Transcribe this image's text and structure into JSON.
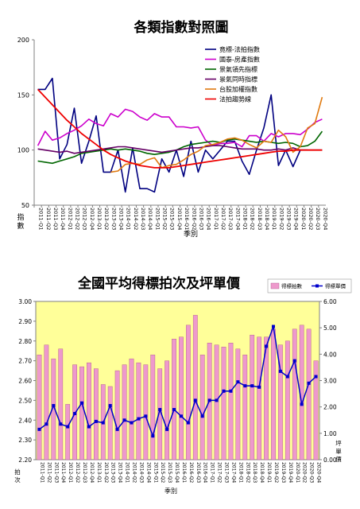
{
  "chart_data": [
    {
      "type": "line",
      "title": "各類指數對照圖",
      "xlabel": "季別",
      "ylabel": "指數",
      "ylim": [
        50,
        200
      ],
      "yticks": [
        50,
        100,
        150,
        200
      ],
      "legend_position": "top-right",
      "x": [
        "2011-Q1",
        "2011-Q2",
        "2011-Q3",
        "2011-Q4",
        "2012-Q1",
        "2012-Q2",
        "2012-Q3",
        "2012-Q4",
        "2013-Q1",
        "2013-Q2",
        "2013-Q3",
        "2013-Q4",
        "2014-Q1",
        "2014-Q2",
        "2014-Q3",
        "2014-Q4",
        "2015-Q1",
        "2015-Q2",
        "2015-Q3",
        "2015-Q4",
        "2016-Q1",
        "2016-Q2",
        "2016-Q3",
        "2016-Q4",
        "2017-Q1",
        "2017-Q2",
        "2017-Q3",
        "2017-Q4",
        "2018-Q1",
        "2018-Q2",
        "2018-Q3",
        "2018-Q4",
        "2019-Q1",
        "2019-Q2",
        "2019-Q3",
        "2019-Q4",
        "2020-Q1",
        "2020-Q2",
        "2020-Q3",
        "2020-Q4"
      ],
      "series": [
        {
          "name": "竟標-法拍指數",
          "color": "#000080",
          "values": [
            155,
            155,
            165,
            92,
            105,
            138,
            88,
            108,
            131,
            80,
            80,
            100,
            62,
            102,
            65,
            65,
            62,
            92,
            80,
            100,
            76,
            108,
            80,
            100,
            92,
            100,
            108,
            108,
            90,
            78,
            100,
            120,
            150,
            86,
            100,
            85,
            100,
            100,
            null,
            null
          ]
        },
        {
          "name": "國泰-房產指數",
          "color": "#cc00cc",
          "values": [
            104,
            117,
            109,
            111,
            115,
            118,
            122,
            128,
            124,
            122,
            133,
            130,
            137,
            135,
            130,
            127,
            133,
            130,
            130,
            121,
            121,
            120,
            121,
            109,
            104,
            106,
            106,
            107,
            103,
            113,
            113,
            108,
            115,
            112,
            115,
            115,
            114,
            119,
            125,
            128
          ]
        },
        {
          "name": "景氣領先指標",
          "color": "#006600",
          "values": [
            90,
            89,
            88,
            90,
            92,
            94,
            97,
            98,
            99,
            100,
            101,
            100,
            101,
            100,
            99,
            97,
            96,
            97,
            98,
            100,
            103,
            105,
            106,
            107,
            108,
            107,
            109,
            110,
            109,
            108,
            107,
            108,
            107,
            106,
            107,
            106,
            103,
            104,
            108,
            117
          ]
        },
        {
          "name": "景氣同時指標",
          "color": "#660066",
          "values": [
            101,
            100,
            99,
            98,
            99,
            97,
            98,
            99,
            100,
            101,
            102,
            103,
            103,
            102,
            101,
            100,
            99,
            98,
            99,
            100,
            101,
            102,
            102,
            103,
            104,
            104,
            103,
            102,
            101,
            101,
            101,
            100,
            100,
            101,
            100,
            102,
            100,
            100,
            100,
            100
          ]
        },
        {
          "name": "台股加權指數",
          "color": "#e07a10",
          "values": [
            null,
            null,
            null,
            null,
            null,
            null,
            null,
            null,
            null,
            null,
            80,
            81,
            87,
            88,
            87,
            91,
            93,
            84,
            86,
            87,
            91,
            96,
            99,
            104,
            105,
            107,
            110,
            111,
            109,
            105,
            102,
            108,
            107,
            118,
            112,
            98,
            103,
            120,
            124,
            148
          ]
        },
        {
          "name": "法拍趨勢線",
          "color": "#ee0000",
          "values": [
            155,
            148,
            141,
            134,
            127,
            121,
            115,
            110,
            105,
            100,
            96,
            93,
            90,
            88,
            86,
            85,
            84,
            84,
            84,
            85,
            86,
            87,
            88,
            89,
            90,
            91,
            92,
            93,
            94,
            95,
            96,
            97,
            98,
            99,
            99,
            100,
            100,
            100,
            100,
            100
          ]
        }
      ]
    },
    {
      "type": "bar",
      "title": "全國平均得標拍次及坪單價",
      "xlabel": "季別",
      "ylabel": "拍次",
      "y2label": "坪單價",
      "ylim": [
        2.2,
        3.0
      ],
      "y2lim": [
        0,
        6
      ],
      "yticks": [
        "2.20",
        "2.30",
        "2.40",
        "2.50",
        "2.60",
        "2.70",
        "2.80",
        "2.90",
        "3.00"
      ],
      "y2ticks": [
        "0.00",
        "1.00",
        "2.00",
        "3.00",
        "4.00",
        "5.00",
        "6.00"
      ],
      "legend_position": "top-right",
      "plot_bg": "#ffff99",
      "x": [
        "2011-Q1",
        "2011-Q2",
        "2011-Q3",
        "2011-Q4",
        "2012-Q1",
        "2012-Q2",
        "2012-Q3",
        "2012-Q4",
        "2013-Q1",
        "2013-Q2",
        "2013-Q3",
        "2013-Q4",
        "2014-Q1",
        "2014-Q2",
        "2014-Q3",
        "2014-Q4",
        "2015-Q1",
        "2015-Q2",
        "2015-Q3",
        "2015-Q4",
        "2016-Q1",
        "2016-Q2",
        "2016-Q3",
        "2016-Q4",
        "2017-Q1",
        "2017-Q2",
        "2017-Q3",
        "2017-Q4",
        "2018-Q1",
        "2018-Q2",
        "2018-Q3",
        "2018-Q4",
        "2019-Q1",
        "2019-Q2",
        "2019-Q3",
        "2019-Q4",
        "2020-Q1",
        "2020-Q2",
        "2020-Q3",
        "2020-Q4"
      ],
      "series": [
        {
          "name": "得標拍數",
          "kind": "bar",
          "color": "#ee99cc",
          "values": [
            2.73,
            2.78,
            2.71,
            2.76,
            2.48,
            2.68,
            2.67,
            2.69,
            2.66,
            2.58,
            2.57,
            2.65,
            2.68,
            2.71,
            2.69,
            2.68,
            2.73,
            2.66,
            2.7,
            2.81,
            2.82,
            2.88,
            2.93,
            2.73,
            2.79,
            2.78,
            2.77,
            2.79,
            2.76,
            2.73,
            2.83,
            2.82,
            2.82,
            2.86,
            2.78,
            2.8,
            2.86,
            2.88,
            2.86,
            2.7
          ]
        },
        {
          "name": "得標單價",
          "kind": "line",
          "axis": "right",
          "color": "#0000cc",
          "values": [
            1.15,
            1.35,
            2.05,
            1.35,
            1.25,
            1.75,
            2.15,
            1.25,
            1.45,
            1.4,
            2.05,
            1.15,
            1.5,
            1.4,
            1.55,
            1.65,
            0.9,
            1.9,
            1.15,
            1.9,
            1.65,
            1.4,
            2.25,
            1.65,
            2.25,
            2.25,
            2.6,
            2.6,
            2.95,
            2.8,
            2.8,
            2.75,
            4.3,
            5.05,
            3.35,
            3.15,
            3.75,
            2.1,
            2.9,
            3.15
          ]
        }
      ]
    }
  ]
}
